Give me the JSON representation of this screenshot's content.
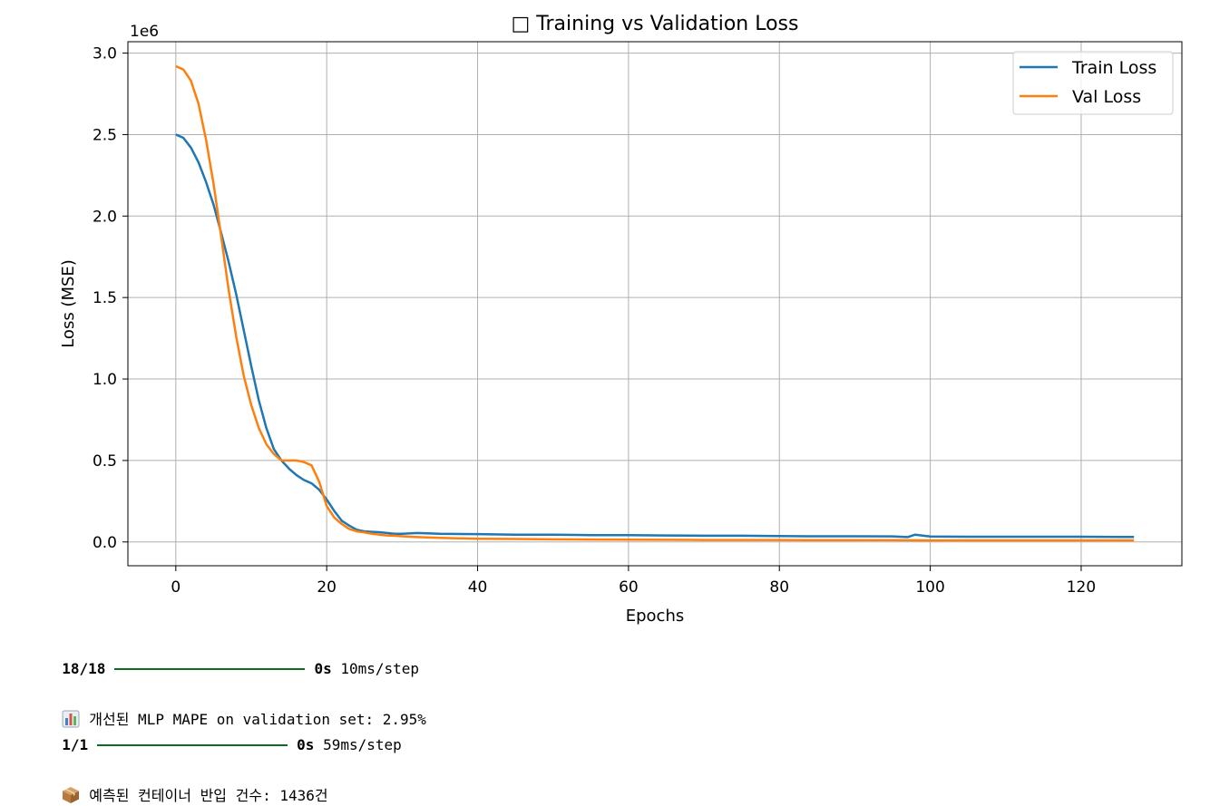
{
  "chart_data": {
    "type": "line",
    "title": "□ Training vs Validation Loss",
    "xlabel": "Epochs",
    "ylabel": "Loss (MSE)",
    "y_offset_label": "1e6",
    "xlim": [
      -6.35,
      133.35
    ],
    "ylim": [
      -0.146,
      3.07
    ],
    "x_ticks": [
      0,
      20,
      40,
      60,
      80,
      100,
      120
    ],
    "y_ticks": [
      0.0,
      0.5,
      1.0,
      1.5,
      2.0,
      2.5,
      3.0
    ],
    "y_tick_labels": [
      "0.0",
      "0.5",
      "1.0",
      "1.5",
      "2.0",
      "2.5",
      "3.0"
    ],
    "grid": true,
    "legend_position": "top-right",
    "series": [
      {
        "name": "Train Loss",
        "color": "#1f77b4",
        "x": [
          0,
          1,
          2,
          3,
          4,
          5,
          6,
          7,
          8,
          9,
          10,
          11,
          12,
          13,
          14,
          15,
          16,
          17,
          18,
          19,
          20,
          21,
          22,
          23,
          24,
          25,
          26,
          27,
          28,
          29,
          30,
          32,
          35,
          40,
          45,
          50,
          55,
          60,
          65,
          70,
          75,
          80,
          85,
          90,
          95,
          97,
          98,
          100,
          105,
          110,
          115,
          120,
          125,
          127
        ],
        "values": [
          2.5,
          2.48,
          2.42,
          2.33,
          2.21,
          2.07,
          1.9,
          1.72,
          1.52,
          1.3,
          1.08,
          0.87,
          0.7,
          0.57,
          0.5,
          0.45,
          0.41,
          0.38,
          0.36,
          0.32,
          0.26,
          0.19,
          0.13,
          0.1,
          0.075,
          0.065,
          0.062,
          0.06,
          0.055,
          0.05,
          0.05,
          0.055,
          0.05,
          0.048,
          0.045,
          0.045,
          0.042,
          0.042,
          0.04,
          0.038,
          0.038,
          0.036,
          0.035,
          0.035,
          0.034,
          0.03,
          0.045,
          0.033,
          0.032,
          0.032,
          0.032,
          0.032,
          0.031,
          0.031
        ]
      },
      {
        "name": "Val Loss",
        "color": "#ff7f0e",
        "x": [
          0,
          1,
          2,
          3,
          4,
          5,
          6,
          7,
          8,
          9,
          10,
          11,
          12,
          13,
          14,
          15,
          16,
          17,
          18,
          19,
          20,
          21,
          22,
          23,
          24,
          25,
          26,
          27,
          28,
          29,
          30,
          32,
          35,
          40,
          45,
          50,
          55,
          60,
          65,
          70,
          75,
          80,
          85,
          90,
          95,
          100,
          105,
          110,
          115,
          120,
          125,
          127
        ],
        "values": [
          2.92,
          2.9,
          2.83,
          2.69,
          2.47,
          2.2,
          1.88,
          1.55,
          1.26,
          1.02,
          0.84,
          0.7,
          0.6,
          0.54,
          0.5,
          0.5,
          0.5,
          0.49,
          0.47,
          0.37,
          0.22,
          0.15,
          0.11,
          0.08,
          0.065,
          0.058,
          0.05,
          0.045,
          0.04,
          0.038,
          0.035,
          0.03,
          0.025,
          0.02,
          0.018,
          0.016,
          0.015,
          0.014,
          0.013,
          0.012,
          0.012,
          0.012,
          0.011,
          0.011,
          0.011,
          0.01,
          0.01,
          0.01,
          0.01,
          0.01,
          0.01,
          0.01
        ]
      }
    ]
  },
  "console": {
    "line1": {
      "progress": "18/18",
      "time": "0s",
      "rate": " 10ms/step"
    },
    "line2": {
      "icon": "bar-chart-icon",
      "text": "개선된 MLP MAPE on validation set: 2.95%"
    },
    "line3": {
      "progress": "1/1",
      "time": "0s",
      "rate": " 59ms/step"
    },
    "line4": {
      "icon": "package-icon",
      "text": "예측된 컨테이너 반입 건수: 1436건"
    }
  }
}
